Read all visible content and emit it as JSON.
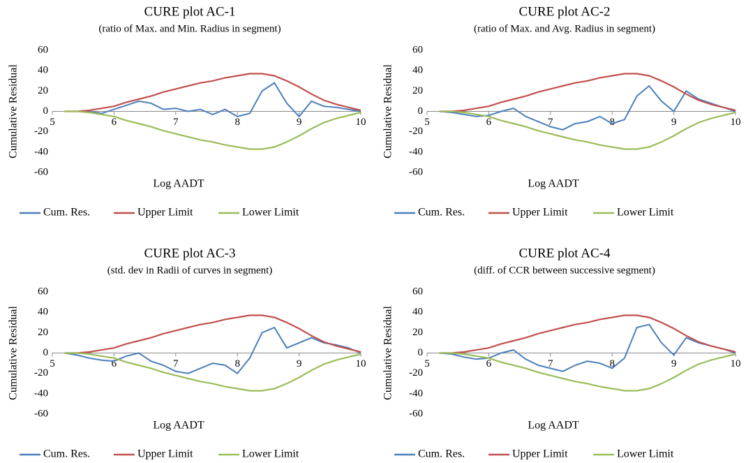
{
  "chart_data": [
    {
      "type": "line",
      "title": "CURE plot AC-1",
      "subtitle": "(ratio of Max. and Min. Radius in segment)",
      "x_label": "Log AADT",
      "y_label": "Cumulative Residual",
      "x": [
        5.2,
        5.4,
        5.6,
        5.8,
        6.0,
        6.2,
        6.4,
        6.6,
        6.8,
        7.0,
        7.2,
        7.4,
        7.6,
        7.8,
        8.0,
        8.2,
        8.4,
        8.6,
        8.8,
        9.0,
        9.2,
        9.4,
        9.6,
        9.8,
        10.0
      ],
      "series": [
        {
          "name": "Cum. Res.",
          "color": "#4a7ebb",
          "values": [
            0,
            0,
            0,
            -2,
            2,
            6,
            10,
            8,
            2,
            3,
            0,
            2,
            -3,
            2,
            -5,
            -2,
            20,
            28,
            8,
            -5,
            10,
            5,
            4,
            2,
            0
          ]
        },
        {
          "name": "Upper Limit",
          "color": "#c0504d",
          "values": [
            0,
            0,
            1,
            3,
            5,
            9,
            12,
            15,
            19,
            22,
            25,
            28,
            30,
            33,
            35,
            37,
            37,
            35,
            30,
            24,
            17,
            11,
            7,
            4,
            1
          ]
        },
        {
          "name": "Lower Limit",
          "color": "#9bbb59",
          "values": [
            0,
            0,
            -1,
            -3,
            -5,
            -9,
            -12,
            -15,
            -19,
            -22,
            -25,
            -28,
            -30,
            -33,
            -35,
            -37,
            -37,
            -35,
            -30,
            -24,
            -17,
            -11,
            -7,
            -4,
            -1
          ]
        }
      ],
      "xlim": [
        5,
        10
      ],
      "xticks": [
        5,
        6,
        7,
        8,
        9,
        10
      ],
      "ylim": [
        -60,
        60
      ],
      "yticks": [
        -60,
        -40,
        -20,
        0,
        20,
        40,
        60
      ],
      "legend": "bottom"
    },
    {
      "type": "line",
      "title": "CURE plot AC-2",
      "subtitle": "(ratio of Max. and Avg. Radius in segment)",
      "x_label": "Log AADT",
      "y_label": "Cumulative Residual",
      "x": [
        5.2,
        5.4,
        5.6,
        5.8,
        6.0,
        6.2,
        6.4,
        6.6,
        6.8,
        7.0,
        7.2,
        7.4,
        7.6,
        7.8,
        8.0,
        8.2,
        8.4,
        8.6,
        8.8,
        9.0,
        9.2,
        9.4,
        9.6,
        9.8,
        10.0
      ],
      "series": [
        {
          "name": "Cum. Res.",
          "color": "#4a7ebb",
          "values": [
            0,
            -1,
            -3,
            -5,
            -4,
            0,
            3,
            -5,
            -10,
            -15,
            -18,
            -12,
            -10,
            -5,
            -12,
            -8,
            15,
            25,
            10,
            0,
            20,
            12,
            8,
            4,
            0
          ]
        },
        {
          "name": "Upper Limit",
          "color": "#c0504d",
          "values": [
            0,
            0,
            1,
            3,
            5,
            9,
            12,
            15,
            19,
            22,
            25,
            28,
            30,
            33,
            35,
            37,
            37,
            35,
            30,
            24,
            17,
            11,
            7,
            4,
            1
          ]
        },
        {
          "name": "Lower Limit",
          "color": "#9bbb59",
          "values": [
            0,
            0,
            -1,
            -3,
            -5,
            -9,
            -12,
            -15,
            -19,
            -22,
            -25,
            -28,
            -30,
            -33,
            -35,
            -37,
            -37,
            -35,
            -30,
            -24,
            -17,
            -11,
            -7,
            -4,
            -1
          ]
        }
      ],
      "xlim": [
        5,
        10
      ],
      "xticks": [
        5,
        6,
        7,
        8,
        9,
        10
      ],
      "ylim": [
        -60,
        60
      ],
      "yticks": [
        -60,
        -40,
        -20,
        0,
        20,
        40,
        60
      ],
      "legend": "bottom"
    },
    {
      "type": "line",
      "title": "CURE plot AC-3",
      "subtitle": "(std. dev in Radii of curves in segment)",
      "x_label": "Log AADT",
      "y_label": "Cumulative Residual",
      "x": [
        5.2,
        5.4,
        5.6,
        5.8,
        6.0,
        6.2,
        6.4,
        6.6,
        6.8,
        7.0,
        7.2,
        7.4,
        7.6,
        7.8,
        8.0,
        8.2,
        8.4,
        8.6,
        8.8,
        9.0,
        9.2,
        9.4,
        9.6,
        9.8,
        10.0
      ],
      "series": [
        {
          "name": "Cum. Res.",
          "color": "#4a7ebb",
          "values": [
            0,
            -2,
            -5,
            -7,
            -8,
            -3,
            0,
            -8,
            -12,
            -18,
            -20,
            -15,
            -10,
            -12,
            -20,
            -5,
            20,
            25,
            5,
            10,
            15,
            10,
            8,
            5,
            0
          ]
        },
        {
          "name": "Upper Limit",
          "color": "#c0504d",
          "values": [
            0,
            0,
            1,
            3,
            5,
            9,
            12,
            15,
            19,
            22,
            25,
            28,
            30,
            33,
            35,
            37,
            37,
            35,
            30,
            24,
            17,
            11,
            7,
            4,
            1
          ]
        },
        {
          "name": "Lower Limit",
          "color": "#9bbb59",
          "values": [
            0,
            0,
            -1,
            -3,
            -5,
            -9,
            -12,
            -15,
            -19,
            -22,
            -25,
            -28,
            -30,
            -33,
            -35,
            -37,
            -37,
            -35,
            -30,
            -24,
            -17,
            -11,
            -7,
            -4,
            -1
          ]
        }
      ],
      "xlim": [
        5,
        10
      ],
      "xticks": [
        5,
        6,
        7,
        8,
        9,
        10
      ],
      "ylim": [
        -60,
        60
      ],
      "yticks": [
        -60,
        -40,
        -20,
        0,
        20,
        40,
        60
      ],
      "legend": "bottom"
    },
    {
      "type": "line",
      "title": "CURE plot AC-4",
      "subtitle": "(diff. of CCR between successive segment)",
      "x_label": "Log AADT",
      "y_label": "Cumulative Residual",
      "x": [
        5.2,
        5.4,
        5.6,
        5.8,
        6.0,
        6.2,
        6.4,
        6.6,
        6.8,
        7.0,
        7.2,
        7.4,
        7.6,
        7.8,
        8.0,
        8.2,
        8.4,
        8.6,
        8.8,
        9.0,
        9.2,
        9.4,
        9.6,
        9.8,
        10.0
      ],
      "series": [
        {
          "name": "Cum. Res.",
          "color": "#4a7ebb",
          "values": [
            0,
            -1,
            -4,
            -6,
            -5,
            0,
            3,
            -6,
            -12,
            -15,
            -18,
            -12,
            -8,
            -10,
            -15,
            -5,
            25,
            28,
            10,
            -2,
            15,
            10,
            7,
            4,
            0
          ]
        },
        {
          "name": "Upper Limit",
          "color": "#c0504d",
          "values": [
            0,
            0,
            1,
            3,
            5,
            9,
            12,
            15,
            19,
            22,
            25,
            28,
            30,
            33,
            35,
            37,
            37,
            35,
            30,
            24,
            17,
            11,
            7,
            4,
            1
          ]
        },
        {
          "name": "Lower Limit",
          "color": "#9bbb59",
          "values": [
            0,
            0,
            -1,
            -3,
            -5,
            -9,
            -12,
            -15,
            -19,
            -22,
            -25,
            -28,
            -30,
            -33,
            -35,
            -37,
            -37,
            -35,
            -30,
            -24,
            -17,
            -11,
            -7,
            -4,
            -1
          ]
        }
      ],
      "xlim": [
        5,
        10
      ],
      "xticks": [
        5,
        6,
        7,
        8,
        9,
        10
      ],
      "ylim": [
        -60,
        60
      ],
      "yticks": [
        -60,
        -40,
        -20,
        0,
        20,
        40,
        60
      ],
      "legend": "bottom"
    }
  ]
}
